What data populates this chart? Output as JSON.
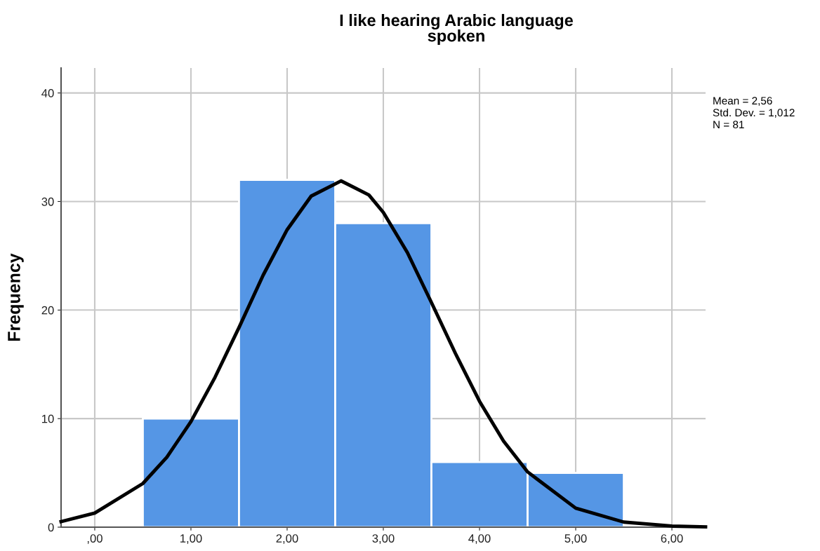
{
  "chart_data": {
    "type": "histogram",
    "title": "I like hearing Arabic language\nspoken",
    "ylabel": "Frequency",
    "bins": [
      0.5,
      1.5,
      2.5,
      3.5,
      4.5,
      5.5
    ],
    "values": [
      10,
      32,
      28,
      6,
      5
    ],
    "color": "#5596e5",
    "series": [
      {
        "type": "line",
        "color": "#000000",
        "x": [
          -0.35,
          0,
          0.5,
          0.75,
          1,
          1.25,
          1.5,
          1.75,
          2,
          2.25,
          2.56,
          2.85,
          3,
          3.25,
          3.5,
          3.75,
          4,
          4.25,
          4.5,
          5,
          5.5,
          6,
          6.35
        ],
        "values": [
          0.51,
          1.3,
          4.02,
          6.45,
          9.73,
          13.8,
          18.4,
          23.2,
          27.4,
          30.5,
          31.9,
          30.6,
          29.0,
          25.3,
          20.7,
          16.0,
          11.6,
          7.92,
          5.09,
          1.75,
          0.47,
          0.1,
          0.03
        ]
      }
    ],
    "xlim": [
      -0.35,
      6.35
    ],
    "ylim": [
      0,
      42.3
    ],
    "xticks": [
      {
        "value": 0,
        "label": ",00"
      },
      {
        "value": 1,
        "label": "1,00"
      },
      {
        "value": 2,
        "label": "2,00"
      },
      {
        "value": 3,
        "label": "3,00"
      },
      {
        "value": 4,
        "label": "4,00"
      },
      {
        "value": 5,
        "label": "5,00"
      },
      {
        "value": 6,
        "label": "6,00"
      }
    ],
    "yticks": [
      0,
      10,
      20,
      30,
      40
    ],
    "grid": true,
    "annotations": [
      "Mean = 2,56",
      "Std. Dev. = 1,012",
      "N = 81"
    ]
  }
}
